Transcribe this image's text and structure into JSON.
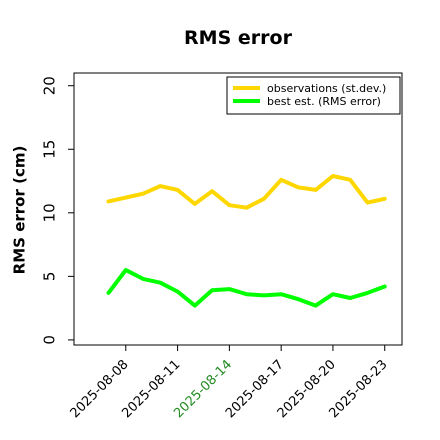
{
  "chart_data": {
    "type": "line",
    "title": "RMS error",
    "xlabel": "",
    "ylabel": "RMS error (cm)",
    "ylim": [
      -0.4,
      21.0
    ],
    "yticks": [
      0,
      5,
      10,
      15,
      20
    ],
    "x": [
      "2025-08-07",
      "2025-08-08",
      "2025-08-09",
      "2025-08-10",
      "2025-08-11",
      "2025-08-12",
      "2025-08-13",
      "2025-08-14",
      "2025-08-15",
      "2025-08-16",
      "2025-08-17",
      "2025-08-18",
      "2025-08-19",
      "2025-08-20",
      "2025-08-21",
      "2025-08-22",
      "2025-08-23"
    ],
    "xlim": [
      "2025-08-05",
      "2025-08-24"
    ],
    "xticks": [
      {
        "label": "2025-08-08",
        "date": "2025-08-08",
        "color": "#000000"
      },
      {
        "label": "2025-08-11",
        "date": "2025-08-11",
        "color": "#000000"
      },
      {
        "label": "2025-08-14",
        "date": "2025-08-14",
        "color": "#228B22"
      },
      {
        "label": "2025-08-17",
        "date": "2025-08-17",
        "color": "#000000"
      },
      {
        "label": "2025-08-20",
        "date": "2025-08-20",
        "color": "#000000"
      },
      {
        "label": "2025-08-23",
        "date": "2025-08-23",
        "color": "#000000"
      }
    ],
    "series": [
      {
        "name": "observations (st.dev.)",
        "color": "#FFD700",
        "values": [
          10.9,
          11.2,
          11.5,
          12.1,
          11.8,
          10.7,
          11.7,
          10.6,
          10.4,
          11.1,
          12.6,
          12.0,
          11.8,
          12.9,
          12.6,
          10.8,
          11.1
        ]
      },
      {
        "name": "best est. (RMS error)",
        "color": "#00FF00",
        "values": [
          3.7,
          5.5,
          4.8,
          4.5,
          3.8,
          2.7,
          3.9,
          4.0,
          3.6,
          3.5,
          3.6,
          3.2,
          2.7,
          3.6,
          3.3,
          3.7,
          4.2
        ]
      }
    ],
    "grid": false,
    "legend_position": "top-right"
  }
}
